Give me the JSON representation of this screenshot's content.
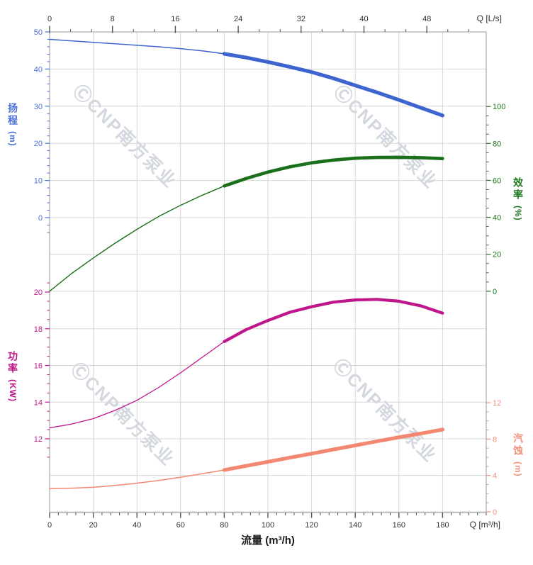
{
  "watermark": {
    "text": "ⒸCNP南方泵业"
  },
  "labels": {
    "flow_axis_title": "流量 (m³/h)",
    "top_unit_label": "Q [L/s]",
    "bottom_unit_label": "Q [m³/h]"
  },
  "axis_titles": {
    "head": {
      "text": "扬程",
      "unit": "(m)"
    },
    "power": {
      "text": "功率",
      "unit": "(KW)"
    },
    "eff": {
      "text": "效率",
      "unit": "(%)"
    },
    "npsh": {
      "text": "汽蚀",
      "unit": "(m)"
    }
  },
  "chart_data": {
    "type": "line",
    "title": "",
    "x_bottom": {
      "label": "流量 (m³/h)",
      "unit": "m³/h",
      "range": [
        0,
        200
      ],
      "major_ticks": [
        0,
        20,
        40,
        60,
        80,
        100,
        120,
        140,
        160,
        180
      ],
      "minor_step": 4,
      "tick_color": "#555555",
      "label_color": "#333333"
    },
    "x_top": {
      "label": "Q [L/s]",
      "unit": "L/s",
      "range": [
        0,
        55.6
      ],
      "major_ticks": [
        0,
        8,
        16,
        24,
        32,
        40,
        48
      ],
      "minor_divisions_per_major": 3,
      "tick_color": "#555555",
      "label_color": "#333333"
    },
    "y_axes": {
      "head": {
        "label": "扬程 (m)",
        "side": "left",
        "range": [
          0,
          50
        ],
        "major_ticks": [
          50,
          40,
          30,
          20,
          10,
          0
        ],
        "minor_step": 2,
        "minor_range": [
          -4,
          50
        ],
        "color": "#4a6fd8"
      },
      "eff": {
        "label": "效率 (%)",
        "side": "right",
        "range": [
          0,
          100
        ],
        "major_ticks": [
          100,
          80,
          60,
          40,
          20,
          0
        ],
        "minor_step": 5,
        "minor_range": [
          0,
          100
        ],
        "color": "#1e7a1e"
      },
      "power": {
        "label": "功率 (KW)",
        "side": "left",
        "range": [
          12,
          20
        ],
        "major_ticks": [
          20,
          18,
          16,
          14,
          12
        ],
        "minor_step": 0.5,
        "minor_range": [
          11,
          20.5
        ],
        "color": "#c2158c"
      },
      "npsh": {
        "label": "汽蚀 (m)",
        "side": "right",
        "range": [
          0,
          12
        ],
        "major_ticks": [
          12,
          8,
          4,
          0
        ],
        "minor_step": 1,
        "minor_range": [
          0,
          12
        ],
        "color": "#f4917c"
      }
    },
    "grid_color": "#d7d7d7",
    "border_color": "#aaaaaa",
    "series": [
      {
        "name": "head-curve",
        "axis": "head",
        "color": "#3d64cf",
        "thin_width": 1.5,
        "bold_width": 5.2,
        "bold_from": 80,
        "points": [
          [
            0,
            48
          ],
          [
            10,
            47.6
          ],
          [
            20,
            47.2
          ],
          [
            30,
            46.8
          ],
          [
            40,
            46.4
          ],
          [
            50,
            46
          ],
          [
            60,
            45.5
          ],
          [
            70,
            44.9
          ],
          [
            80,
            44.1
          ],
          [
            90,
            43.1
          ],
          [
            100,
            41.9
          ],
          [
            110,
            40.6
          ],
          [
            120,
            39.2
          ],
          [
            130,
            37.5
          ],
          [
            140,
            35.6
          ],
          [
            150,
            33.7
          ],
          [
            160,
            31.7
          ],
          [
            170,
            29.6
          ],
          [
            180,
            27.5
          ]
        ]
      },
      {
        "name": "efficiency-curve",
        "axis": "eff",
        "color": "#1a701a",
        "thin_width": 1.4,
        "bold_width": 4.6,
        "bold_from": 80,
        "points": [
          [
            0,
            0
          ],
          [
            10,
            9.5
          ],
          [
            20,
            18
          ],
          [
            30,
            26
          ],
          [
            40,
            33.5
          ],
          [
            50,
            40.5
          ],
          [
            60,
            46.5
          ],
          [
            70,
            52
          ],
          [
            80,
            57
          ],
          [
            90,
            61
          ],
          [
            100,
            64.5
          ],
          [
            110,
            67.3
          ],
          [
            120,
            69.5
          ],
          [
            130,
            71
          ],
          [
            140,
            72
          ],
          [
            150,
            72.4
          ],
          [
            160,
            72.5
          ],
          [
            170,
            72.3
          ],
          [
            180,
            71.8
          ]
        ]
      },
      {
        "name": "power-curve",
        "axis": "power",
        "color": "#c0168c",
        "thin_width": 1.3,
        "bold_width": 4.2,
        "bold_from": 80,
        "points": [
          [
            0,
            12.6
          ],
          [
            10,
            12.8
          ],
          [
            20,
            13.1
          ],
          [
            30,
            13.55
          ],
          [
            40,
            14.1
          ],
          [
            50,
            14.8
          ],
          [
            60,
            15.6
          ],
          [
            70,
            16.45
          ],
          [
            80,
            17.3
          ],
          [
            90,
            17.95
          ],
          [
            100,
            18.45
          ],
          [
            110,
            18.9
          ],
          [
            120,
            19.2
          ],
          [
            130,
            19.45
          ],
          [
            140,
            19.57
          ],
          [
            150,
            19.6
          ],
          [
            160,
            19.5
          ],
          [
            170,
            19.25
          ],
          [
            180,
            18.85
          ]
        ]
      },
      {
        "name": "npsh-curve",
        "axis": "npsh",
        "color": "#f4876f",
        "thin_width": 1.5,
        "bold_width": 5.2,
        "bold_from": 80,
        "points": [
          [
            0,
            2.55
          ],
          [
            10,
            2.6
          ],
          [
            20,
            2.7
          ],
          [
            30,
            2.9
          ],
          [
            40,
            3.15
          ],
          [
            50,
            3.45
          ],
          [
            60,
            3.8
          ],
          [
            70,
            4.2
          ],
          [
            80,
            4.6
          ],
          [
            90,
            5.05
          ],
          [
            100,
            5.5
          ],
          [
            110,
            5.95
          ],
          [
            120,
            6.4
          ],
          [
            130,
            6.85
          ],
          [
            140,
            7.3
          ],
          [
            150,
            7.75
          ],
          [
            160,
            8.2
          ],
          [
            170,
            8.6
          ],
          [
            180,
            9.05
          ]
        ]
      }
    ]
  }
}
